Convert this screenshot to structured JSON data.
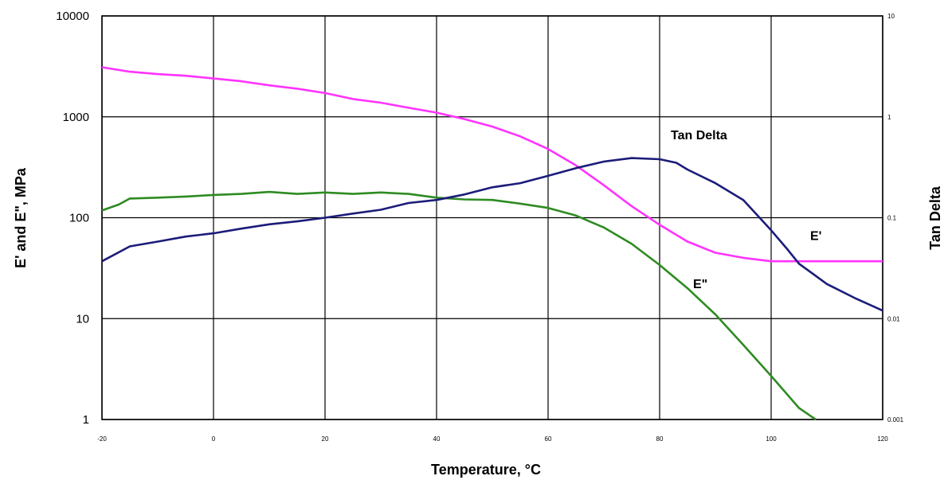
{
  "chart_data": {
    "type": "line",
    "xlabel": "Temperature, °C",
    "ylabel_left": "E' and E\", MPa",
    "ylabel_right": "Tan Delta",
    "xlim": [
      -20,
      120
    ],
    "ylim_left": [
      1,
      10000
    ],
    "ylim_right": [
      0.001,
      10
    ],
    "yscale": "log",
    "grid": true,
    "x_ticks": [
      "-20",
      "0",
      "20",
      "40",
      "60",
      "80",
      "100",
      "120"
    ],
    "y_ticks_left": [
      "10000",
      "1000",
      "100",
      "10",
      "1"
    ],
    "y_ticks_right": [
      "10",
      "1",
      "0.1",
      "0.01",
      "0.001"
    ],
    "series": [
      {
        "name": "E'",
        "axis": "left",
        "color": "#ff33ff",
        "points": [
          [
            -20,
            3100
          ],
          [
            -15,
            2800
          ],
          [
            -10,
            2650
          ],
          [
            -5,
            2550
          ],
          [
            0,
            2400
          ],
          [
            5,
            2250
          ],
          [
            10,
            2050
          ],
          [
            15,
            1900
          ],
          [
            20,
            1720
          ],
          [
            25,
            1500
          ],
          [
            30,
            1380
          ],
          [
            35,
            1230
          ],
          [
            40,
            1100
          ],
          [
            45,
            950
          ],
          [
            50,
            800
          ],
          [
            55,
            640
          ],
          [
            60,
            480
          ],
          [
            65,
            330
          ],
          [
            70,
            210
          ],
          [
            75,
            130
          ],
          [
            80,
            85
          ],
          [
            85,
            58
          ],
          [
            90,
            45
          ],
          [
            95,
            40
          ],
          [
            100,
            37
          ],
          [
            105,
            37
          ],
          [
            110,
            37
          ],
          [
            115,
            37
          ],
          [
            120,
            37
          ]
        ]
      },
      {
        "name": "E\"",
        "axis": "left",
        "color": "#2e8b22",
        "points": [
          [
            -20,
            118
          ],
          [
            -17,
            135
          ],
          [
            -15,
            155
          ],
          [
            -10,
            158
          ],
          [
            -5,
            162
          ],
          [
            0,
            168
          ],
          [
            5,
            172
          ],
          [
            10,
            180
          ],
          [
            15,
            172
          ],
          [
            20,
            178
          ],
          [
            25,
            172
          ],
          [
            30,
            178
          ],
          [
            35,
            172
          ],
          [
            40,
            158
          ],
          [
            45,
            152
          ],
          [
            50,
            150
          ],
          [
            55,
            138
          ],
          [
            60,
            125
          ],
          [
            65,
            105
          ],
          [
            70,
            80
          ],
          [
            75,
            55
          ],
          [
            80,
            34
          ],
          [
            85,
            20
          ],
          [
            90,
            11
          ],
          [
            95,
            5.5
          ],
          [
            100,
            2.7
          ],
          [
            105,
            1.3
          ],
          [
            108,
            1.0
          ]
        ]
      },
      {
        "name": "Tan Delta",
        "axis": "right",
        "color": "#1c1c7a",
        "points": [
          [
            -20,
            0.037
          ],
          [
            -15,
            0.052
          ],
          [
            -10,
            0.058
          ],
          [
            -5,
            0.065
          ],
          [
            0,
            0.07
          ],
          [
            5,
            0.078
          ],
          [
            10,
            0.086
          ],
          [
            15,
            0.092
          ],
          [
            20,
            0.1
          ],
          [
            25,
            0.11
          ],
          [
            30,
            0.12
          ],
          [
            35,
            0.14
          ],
          [
            40,
            0.15
          ],
          [
            45,
            0.17
          ],
          [
            50,
            0.2
          ],
          [
            55,
            0.22
          ],
          [
            60,
            0.26
          ],
          [
            65,
            0.31
          ],
          [
            70,
            0.36
          ],
          [
            75,
            0.39
          ],
          [
            80,
            0.38
          ],
          [
            83,
            0.35
          ],
          [
            85,
            0.3
          ],
          [
            90,
            0.22
          ],
          [
            95,
            0.15
          ],
          [
            100,
            0.075
          ],
          [
            103,
            0.048
          ],
          [
            105,
            0.035
          ],
          [
            110,
            0.022
          ],
          [
            115,
            0.016
          ],
          [
            120,
            0.012
          ]
        ]
      }
    ],
    "annotations": [
      {
        "text": "Tan Delta",
        "x": 82,
        "y_left": 600
      },
      {
        "text": "E'",
        "x": 107,
        "y_left": 60
      },
      {
        "text": "E\"",
        "x": 86,
        "y_left": 20
      }
    ]
  }
}
